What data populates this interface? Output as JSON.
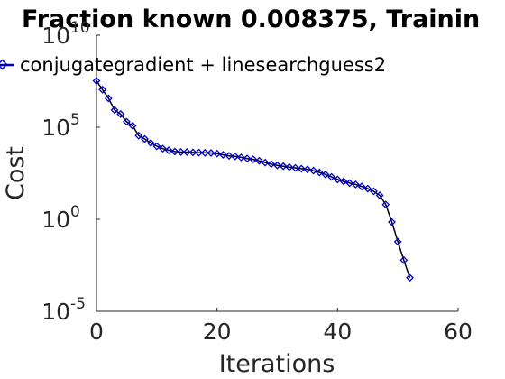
{
  "colors": {
    "series": "#0000cc",
    "axis": "#262626",
    "line": "#000000",
    "background": "#ffffff"
  },
  "chart_data": {
    "type": "line",
    "title": "Fraction known 0.008375, Trainin",
    "xlabel": "Iterations",
    "ylabel": "Cost",
    "xlim": [
      0,
      60
    ],
    "ylim": [
      1e-05,
      10000000000.0
    ],
    "yscale": "log",
    "grid": false,
    "legend_position": "top-left",
    "x_ticks": [
      "0",
      "20",
      "40",
      "60"
    ],
    "y_ticks": [
      {
        "base": "10",
        "exp": "-5",
        "value": 1e-05
      },
      {
        "base": "10",
        "exp": "0",
        "value": 1
      },
      {
        "base": "10",
        "exp": "5",
        "value": 100000.0
      },
      {
        "base": "10",
        "exp": "10",
        "value": 10000000000.0
      }
    ],
    "series": [
      {
        "name": "conjugategradient + linesearchguess2",
        "marker": "diamond",
        "x": [
          0,
          1,
          2,
          3,
          4,
          5,
          6,
          7,
          8,
          9,
          10,
          11,
          12,
          13,
          14,
          15,
          16,
          17,
          18,
          19,
          20,
          21,
          22,
          23,
          24,
          25,
          26,
          27,
          28,
          29,
          30,
          31,
          32,
          33,
          34,
          35,
          36,
          37,
          38,
          39,
          40,
          41,
          42,
          43,
          44,
          45,
          46,
          47,
          48,
          49,
          50,
          51,
          52
        ],
        "y": [
          33000000.0,
          11000000.0,
          3700000.0,
          860000.0,
          520000.0,
          200000.0,
          120000.0,
          35000.0,
          23000.0,
          14000.0,
          9300.0,
          6900.0,
          5600.0,
          4800.0,
          4500.0,
          4500.0,
          4300.0,
          4200.0,
          4100.0,
          4000.0,
          3700.0,
          3200.0,
          2800.0,
          2600.0,
          2300.0,
          2000.0,
          1800.0,
          1500.0,
          1200.0,
          1000.0,
          850,
          760,
          680,
          620,
          560,
          510,
          440,
          350,
          270,
          200,
          145,
          115,
          92,
          78,
          60,
          46,
          33,
          20,
          6.3,
          0.71,
          0.06,
          0.006,
          0.00067
        ]
      }
    ]
  }
}
